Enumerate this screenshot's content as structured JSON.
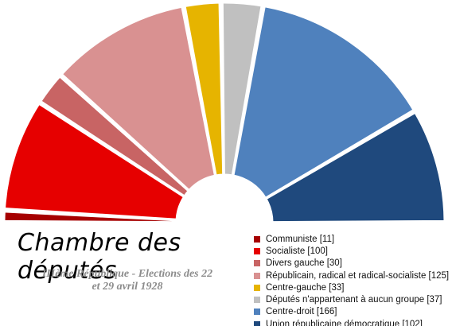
{
  "chart_data": {
    "type": "pie",
    "subtype": "parliament-half-donut",
    "title": "Chambre des députés",
    "subtitle_lines": [
      "IIIème République - Elections des 22",
      "et  29 avril 1928"
    ],
    "categories": [
      "Communiste",
      "Socialiste",
      "Divers gauche",
      "Républicain, radical et radical-socialiste",
      "Centre-gauche",
      "Députés n'appartenant  à aucun groupe",
      "Centre-droit",
      "Union républicaine démocratique"
    ],
    "values": [
      11,
      100,
      30,
      125,
      33,
      37,
      166,
      102
    ],
    "legend_labels": [
      "Communiste [11]",
      "Socialiste [100]",
      "Divers gauche [30]",
      "Républicain, radical et radical-socialiste [125]",
      "Centre-gauche [33]",
      "Députés n'appartenant  à aucun groupe [37]",
      "Centre-droit [166]",
      "Union républicaine démocratique [102]"
    ],
    "colors": [
      "#a60000",
      "#e60000",
      "#c86464",
      "#d99191",
      "#e6b400",
      "#c0c0c0",
      "#4f81bd",
      "#1f497d"
    ],
    "legend_position": "bottom-right"
  }
}
